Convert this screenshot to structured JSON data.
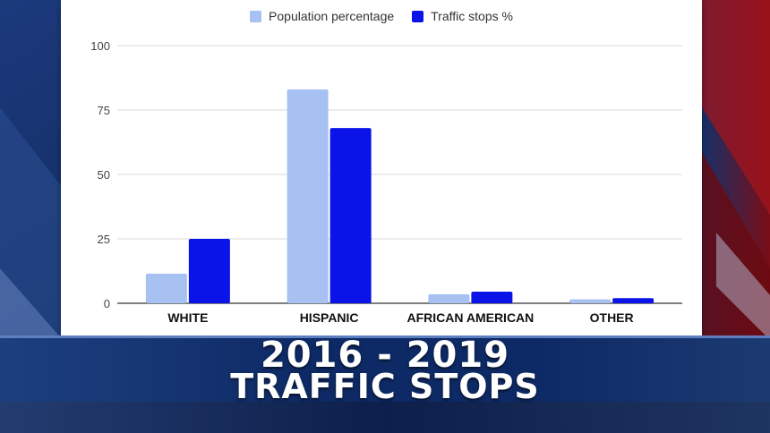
{
  "colors": {
    "population": "#a6c1f2",
    "traffic": "#0a14e8",
    "gridline": "#d9d9d9",
    "axis": "#333333"
  },
  "legend": {
    "population_label": "Population percentage",
    "traffic_label": "Traffic stops %"
  },
  "headline": {
    "line1": "2016 - 2019",
    "line2": "TRAFFIC STOPS"
  },
  "chart_data": {
    "type": "bar",
    "categories": [
      "WHITE",
      "HISPANIC",
      "AFRICAN AMERICAN",
      "OTHER"
    ],
    "series": [
      {
        "name": "Population percentage",
        "values": [
          11.5,
          83,
          3.5,
          1.5
        ]
      },
      {
        "name": "Traffic stops %",
        "values": [
          25,
          68,
          4.5,
          2
        ]
      }
    ],
    "yticks": [
      0,
      25,
      50,
      75,
      100
    ],
    "ylim": [
      0,
      100
    ],
    "legend_position": "top",
    "grid": true
  }
}
